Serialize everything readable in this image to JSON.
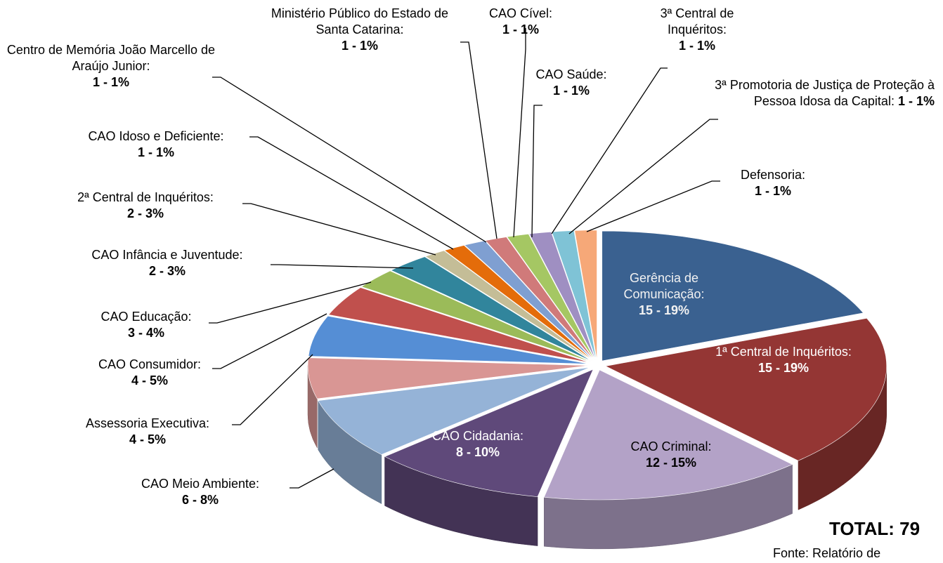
{
  "chart_data": {
    "type": "pie3d",
    "categories": [
      "Gerência de Comunicação:",
      "1ª Central de Inquéritos:",
      "CAO Criminal:",
      "CAO Cidadania:",
      "CAO Meio Ambiente:",
      "Assessoria Executiva:",
      "CAO Consumidor:",
      "CAO Educação:",
      "CAO Infância e Juventude:",
      "2ª Central de Inquéritos:",
      "CAO Idoso e Deficiente:",
      "Centro de Memória João Marcello de Araújo Junior:",
      "Ministério Público do Estado de Santa Catarina:",
      "CAO Cível:",
      "CAO Saúde:",
      "3ª Central de Inquéritos:",
      "3ª Promotoria de Justiça de Proteção à Pessoa Idosa da Capital:",
      "Defensoria:"
    ],
    "values": [
      15,
      15,
      12,
      8,
      6,
      4,
      4,
      3,
      2,
      2,
      1,
      1,
      1,
      1,
      1,
      1,
      1,
      1
    ],
    "value_labels": [
      "15 - 19%",
      "15 - 19%",
      "12 - 15%",
      "8 - 10%",
      "6 - 8%",
      "4 - 5%",
      "4 - 5%",
      "3 - 4%",
      "2 - 3%",
      "2 - 3%",
      "1 - 1%",
      "1 - 1%",
      "1 - 1%",
      "1 - 1%",
      "1 - 1%",
      "1 - 1%",
      "1 - 1%",
      "1 - 1%"
    ],
    "colors": [
      "#3a6190",
      "#943634",
      "#b3a2c7",
      "#5f497a",
      "#95b3d7",
      "#d99694",
      "#558ed5",
      "#c0504d",
      "#9bbb59",
      "#31859c",
      "#c4bd97",
      "#e46c0a",
      "#7f9fd1",
      "#d07a7a",
      "#a5c763",
      "#9f8fc2",
      "#7fc3d6",
      "#f6a878"
    ],
    "total": "TOTAL: 79",
    "source": "Fonte: Relatório de"
  }
}
